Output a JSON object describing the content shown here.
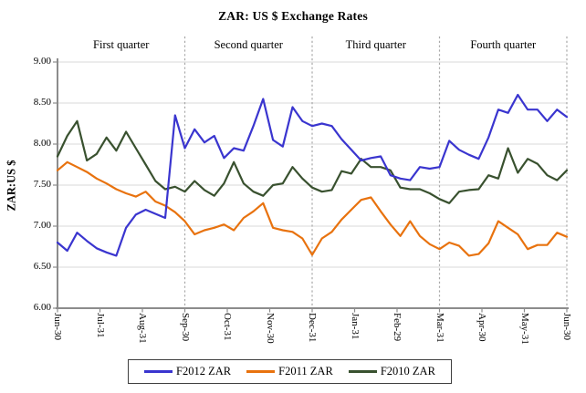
{
  "chart_data": {
    "type": "line",
    "title": "ZAR: US $ Exchange Rates",
    "xlabel": "",
    "ylabel": "ZAR:US $",
    "ylim": [
      6.0,
      9.0
    ],
    "ytick_step": 0.5,
    "yticks": [
      "9.00",
      "8.50",
      "8.00",
      "7.50",
      "7.00",
      "6.50",
      "6.00"
    ],
    "x_tick_labels": [
      "Jun-30",
      "Jul-31",
      "Aug-31",
      "Sep-30",
      "Oct-31",
      "Nov-30",
      "Dec-31",
      "Jan-31",
      "Feb-29",
      "Mar-31",
      "Apr-30",
      "May-31",
      "Jun-30"
    ],
    "quarter_labels": [
      "First quarter",
      "Second quarter",
      "Third quarter",
      "Fourth quarter"
    ],
    "quarter_separator_ticks": [
      3,
      6,
      9,
      12
    ],
    "grid": "horizontal",
    "legend_position": "bottom",
    "sampling": "weekly (values estimated from plot, Jun-30 through following Jun-30)",
    "colors": {
      "grid": "#d9d9d9",
      "axis": "#8c8c8c",
      "separator": "#a8a8a8",
      "text": "#000000"
    },
    "series": [
      {
        "name": "F2012 ZAR",
        "color": "#3a35cf",
        "values": [
          6.8,
          6.7,
          6.92,
          6.82,
          6.73,
          6.68,
          6.64,
          6.98,
          7.14,
          7.2,
          7.15,
          7.1,
          8.35,
          7.95,
          8.18,
          8.02,
          8.1,
          7.83,
          7.95,
          7.92,
          8.22,
          8.55,
          8.05,
          7.97,
          8.45,
          8.28,
          8.22,
          8.25,
          8.22,
          8.06,
          7.93,
          7.8,
          7.83,
          7.85,
          7.62,
          7.58,
          7.56,
          7.72,
          7.7,
          7.72,
          8.04,
          7.93,
          7.87,
          7.82,
          8.08,
          8.42,
          8.38,
          8.6,
          8.42,
          8.42,
          8.28,
          8.42,
          8.33
        ]
      },
      {
        "name": "F2011 ZAR",
        "color": "#e8720e",
        "values": [
          7.68,
          7.78,
          7.72,
          7.66,
          7.58,
          7.52,
          7.45,
          7.4,
          7.36,
          7.42,
          7.3,
          7.25,
          7.17,
          7.06,
          6.9,
          6.95,
          6.98,
          7.02,
          6.95,
          7.1,
          7.18,
          7.28,
          6.98,
          6.95,
          6.93,
          6.85,
          6.65,
          6.85,
          6.93,
          7.08,
          7.2,
          7.32,
          7.35,
          7.18,
          7.02,
          6.88,
          7.06,
          6.88,
          6.78,
          6.72,
          6.8,
          6.76,
          6.64,
          6.66,
          6.79,
          7.06,
          6.98,
          6.9,
          6.72,
          6.77,
          6.77,
          6.92,
          6.87
        ]
      },
      {
        "name": "F2010 ZAR",
        "color": "#39512f",
        "values": [
          7.85,
          8.1,
          8.28,
          7.8,
          7.88,
          8.08,
          7.92,
          8.15,
          7.95,
          7.75,
          7.55,
          7.45,
          7.48,
          7.42,
          7.55,
          7.44,
          7.37,
          7.52,
          7.78,
          7.52,
          7.42,
          7.37,
          7.5,
          7.52,
          7.72,
          7.58,
          7.47,
          7.42,
          7.44,
          7.67,
          7.64,
          7.82,
          7.72,
          7.72,
          7.68,
          7.47,
          7.45,
          7.45,
          7.4,
          7.33,
          7.28,
          7.42,
          7.44,
          7.45,
          7.62,
          7.58,
          7.95,
          7.65,
          7.82,
          7.76,
          7.62,
          7.56,
          7.68
        ]
      }
    ]
  }
}
